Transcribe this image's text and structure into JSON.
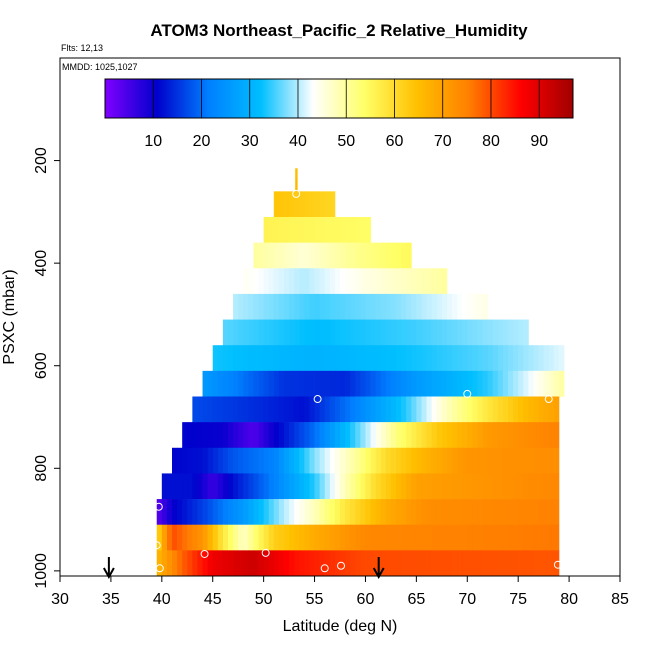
{
  "chart_data": {
    "type": "heatmap",
    "title": "ATOM3 Northeast_Pacific_2 Relative_Humidity",
    "flights_label": "Flts: 12,13",
    "dates_label": "MMDD: 1025,1027",
    "xlabel": "Latitude (deg N)",
    "ylabel": "PSXC (mbar)",
    "xlim": [
      30,
      85
    ],
    "ylim": [
      1010,
      0
    ],
    "x_ticks": [
      "30",
      "35",
      "40",
      "45",
      "50",
      "55",
      "60",
      "65",
      "70",
      "75",
      "80",
      "85"
    ],
    "y_ticks": [
      "200",
      "400",
      "600",
      "800",
      "1000"
    ],
    "colorbar": {
      "range": [
        0,
        97
      ],
      "ticks": [
        "10",
        "20",
        "30",
        "40",
        "50",
        "60",
        "70",
        "80",
        "90"
      ],
      "colors": [
        "#8000ff",
        "#0000cc",
        "#0080ff",
        "#00bfff",
        "#ffffff",
        "#ffff66",
        "#ffc000",
        "#ff7f00",
        "#ff0000",
        "#a00000"
      ]
    },
    "bins": [
      {
        "p_top": 215,
        "p_bot": 235,
        "lat_min": 53.1,
        "lat_max": 53.3,
        "rh": [
          [
            53.1,
            65
          ]
        ]
      },
      {
        "p_top": 235,
        "p_bot": 260,
        "lat_min": 53.1,
        "lat_max": 53.3,
        "rh": [
          [
            53.1,
            66
          ]
        ]
      },
      {
        "p_top": 260,
        "p_bot": 310,
        "lat_min": 51.0,
        "lat_max": 57.0,
        "rh": [
          [
            51.0,
            64
          ],
          [
            57.0,
            61
          ]
        ]
      },
      {
        "p_top": 310,
        "p_bot": 360,
        "lat_min": 50.0,
        "lat_max": 60.5,
        "rh": [
          [
            50.0,
            56
          ],
          [
            55.0,
            55
          ],
          [
            60.5,
            54
          ]
        ]
      },
      {
        "p_top": 360,
        "p_bot": 410,
        "lat_min": 49.0,
        "lat_max": 64.5,
        "rh": [
          [
            49.0,
            50
          ],
          [
            54.0,
            46
          ],
          [
            59.0,
            51
          ],
          [
            64.5,
            55
          ]
        ]
      },
      {
        "p_top": 410,
        "p_bot": 460,
        "lat_min": 48.0,
        "lat_max": 68.0,
        "rh": [
          [
            48.0,
            44
          ],
          [
            54.0,
            40
          ],
          [
            60.0,
            45
          ],
          [
            68.0,
            50
          ]
        ]
      },
      {
        "p_top": 460,
        "p_bot": 510,
        "lat_min": 47.0,
        "lat_max": 72.0,
        "rh": [
          [
            47.0,
            40
          ],
          [
            55.0,
            35
          ],
          [
            63.0,
            38
          ],
          [
            72.0,
            45
          ]
        ]
      },
      {
        "p_top": 510,
        "p_bot": 560,
        "lat_min": 46.0,
        "lat_max": 76.0,
        "rh": [
          [
            46.0,
            36
          ],
          [
            55.0,
            32
          ],
          [
            65.0,
            35
          ],
          [
            76.0,
            40
          ]
        ]
      },
      {
        "p_top": 560,
        "p_bot": 610,
        "lat_min": 45.0,
        "lat_max": 79.5,
        "rh": [
          [
            45.0,
            33
          ],
          [
            55.0,
            30
          ],
          [
            65.0,
            33
          ],
          [
            72.0,
            36
          ],
          [
            79.5,
            42
          ]
        ]
      },
      {
        "p_top": 610,
        "p_bot": 660,
        "lat_min": 44.0,
        "lat_max": 79.5,
        "rh": [
          [
            44.0,
            26
          ],
          [
            52.0,
            15
          ],
          [
            58.0,
            14
          ],
          [
            65.0,
            26
          ],
          [
            72.0,
            34
          ],
          [
            76.0,
            42
          ],
          [
            79.5,
            50
          ]
        ]
      },
      {
        "p_top": 660,
        "p_bot": 710,
        "lat_min": 43.0,
        "lat_max": 79.0,
        "rh": [
          [
            43.0,
            17
          ],
          [
            48.0,
            15
          ],
          [
            54.0,
            12
          ],
          [
            59.0,
            22
          ],
          [
            64.0,
            34
          ],
          [
            68.0,
            48
          ],
          [
            72.0,
            58
          ],
          [
            76.0,
            66
          ],
          [
            79.0,
            70
          ]
        ]
      },
      {
        "p_top": 710,
        "p_bot": 760,
        "lat_min": 42.0,
        "lat_max": 79.0,
        "rh": [
          [
            42.0,
            11
          ],
          [
            46.0,
            10
          ],
          [
            49.0,
            4
          ],
          [
            51.0,
            10
          ],
          [
            55.0,
            20
          ],
          [
            59.0,
            35
          ],
          [
            63.0,
            52
          ],
          [
            67.0,
            63
          ],
          [
            72.0,
            71
          ],
          [
            79.0,
            75
          ]
        ]
      },
      {
        "p_top": 760,
        "p_bot": 810,
        "lat_min": 41.0,
        "lat_max": 79.0,
        "rh": [
          [
            41.0,
            11
          ],
          [
            44.0,
            12
          ],
          [
            47.0,
            18
          ],
          [
            51.0,
            22
          ],
          [
            55.0,
            38
          ],
          [
            59.0,
            50
          ],
          [
            62.0,
            60
          ],
          [
            66.0,
            67
          ],
          [
            70.0,
            72
          ],
          [
            79.0,
            73
          ]
        ]
      },
      {
        "p_top": 810,
        "p_bot": 860,
        "lat_min": 40.0,
        "lat_max": 79.0,
        "rh": [
          [
            40.0,
            12
          ],
          [
            43.0,
            12
          ],
          [
            45.0,
            6
          ],
          [
            47.0,
            12
          ],
          [
            51.0,
            22
          ],
          [
            55.0,
            34
          ],
          [
            58.0,
            48
          ],
          [
            61.0,
            60
          ],
          [
            65.0,
            70
          ],
          [
            79.0,
            74
          ]
        ]
      },
      {
        "p_top": 860,
        "p_bot": 910,
        "lat_min": 39.5,
        "lat_max": 79.0,
        "rh": [
          [
            39.5,
            3
          ],
          [
            41.0,
            10
          ],
          [
            44.0,
            16
          ],
          [
            48.0,
            26
          ],
          [
            52.0,
            40
          ],
          [
            55.0,
            48
          ],
          [
            58.0,
            58
          ],
          [
            62.0,
            68
          ],
          [
            66.0,
            73
          ],
          [
            79.0,
            75
          ]
        ]
      },
      {
        "p_top": 910,
        "p_bot": 960,
        "lat_min": 39.5,
        "lat_max": 79.0,
        "rh": [
          [
            39.5,
            60
          ],
          [
            41.0,
            80
          ],
          [
            44.0,
            72
          ],
          [
            46.0,
            58
          ],
          [
            48.0,
            47
          ],
          [
            51.0,
            62
          ],
          [
            55.0,
            68
          ],
          [
            60.0,
            74
          ],
          [
            79.0,
            76
          ]
        ]
      },
      {
        "p_top": 960,
        "p_bot": 1010,
        "lat_min": 39.5,
        "lat_max": 79.0,
        "rh": [
          [
            39.5,
            66
          ],
          [
            42.0,
            78
          ],
          [
            45.0,
            88
          ],
          [
            49.0,
            92
          ],
          [
            53.0,
            85
          ],
          [
            57.0,
            82
          ],
          [
            60.0,
            80
          ],
          [
            79.0,
            79
          ]
        ]
      }
    ],
    "profile_markers": [
      {
        "lat": 53.2,
        "p": 265
      },
      {
        "lat": 55.3,
        "p": 665
      },
      {
        "lat": 70.0,
        "p": 655
      },
      {
        "lat": 78.0,
        "p": 665
      },
      {
        "lat": 39.7,
        "p": 875
      },
      {
        "lat": 39.5,
        "p": 950
      },
      {
        "lat": 39.8,
        "p": 995
      },
      {
        "lat": 44.2,
        "p": 967
      },
      {
        "lat": 50.2,
        "p": 965
      },
      {
        "lat": 56.0,
        "p": 995
      },
      {
        "lat": 57.6,
        "p": 990
      },
      {
        "lat": 78.9,
        "p": 988
      }
    ],
    "arrow_markers": [
      {
        "lat": 34.8,
        "label": "35"
      },
      {
        "lat": 61.3,
        "label": "61"
      }
    ]
  }
}
